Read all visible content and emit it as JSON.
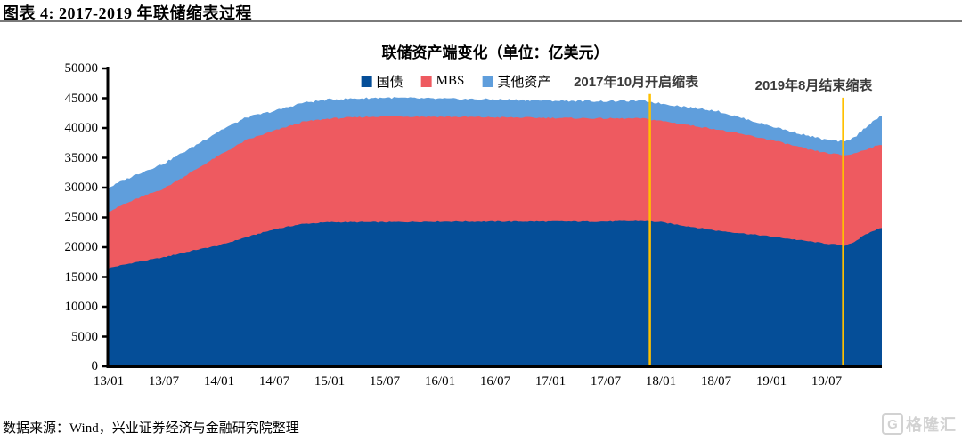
{
  "header": {
    "title": "图表 4: 2017-2019 年联储缩表过程"
  },
  "footer": {
    "source": "数据来源：Wind，兴业证券经济与金融研究院整理",
    "watermark_letter": "G",
    "watermark_text": "格隆汇"
  },
  "chart_data": {
    "type": "area",
    "stacked": true,
    "title": "联储资产端变化（单位：亿美元）",
    "unit": "亿美元",
    "legend": [
      {
        "label": "国债",
        "color": "#054E98"
      },
      {
        "label": "MBS",
        "color": "#EE5A60"
      },
      {
        "label": "其他资产",
        "color": "#5F9EDC"
      }
    ],
    "colors": {
      "treasury": "#054E98",
      "mbs": "#EE5A60",
      "other": "#5F9EDC",
      "event_line": "#FFC000",
      "axis": "#000000"
    },
    "ylim": [
      0,
      50000
    ],
    "y_ticks": [
      0,
      5000,
      10000,
      15000,
      20000,
      25000,
      30000,
      35000,
      40000,
      45000,
      50000
    ],
    "x_domain_months": [
      0,
      84
    ],
    "x_tick_months": [
      0,
      6,
      12,
      18,
      24,
      30,
      36,
      42,
      48,
      54,
      60,
      66,
      72,
      78
    ],
    "x_tick_labels": [
      "13/01",
      "13/07",
      "14/01",
      "14/07",
      "15/01",
      "15/07",
      "16/01",
      "16/07",
      "17/01",
      "17/07",
      "18/01",
      "18/07",
      "19/01",
      "19/07"
    ],
    "legend_position": "top",
    "grid": false,
    "samples": {
      "months": [
        0,
        3,
        6,
        9,
        12,
        15,
        18,
        21,
        24,
        30,
        36,
        42,
        48,
        54,
        58,
        60,
        66,
        72,
        76,
        78,
        80,
        81,
        82,
        83,
        84
      ],
      "treasury": [
        16500,
        17500,
        18300,
        19400,
        20300,
        21700,
        23000,
        23900,
        24200,
        24200,
        24300,
        24300,
        24300,
        24300,
        24400,
        24200,
        22800,
        21800,
        21000,
        20600,
        20300,
        20900,
        21900,
        22700,
        23300
      ],
      "mbs": [
        9500,
        10600,
        11550,
        13200,
        15100,
        16300,
        16550,
        17100,
        17400,
        17800,
        17600,
        17500,
        17400,
        17300,
        17200,
        17000,
        17000,
        16200,
        15400,
        15200,
        15100,
        14800,
        14400,
        14100,
        13900
      ],
      "other": [
        4000,
        4100,
        4200,
        4100,
        4100,
        3800,
        3300,
        3200,
        3200,
        3100,
        3000,
        3000,
        2900,
        2900,
        3000,
        2900,
        3100,
        2300,
        2300,
        2200,
        2300,
        2700,
        3500,
        4300,
        4800
      ]
    },
    "annotations": [
      {
        "text": "2017年10月开启缩表",
        "line_month": 58.8,
        "label_month": 57.3,
        "line_top_value": 45700
      },
      {
        "text": "2019年8月结束缩表",
        "line_month": 79.8,
        "label_month": 76.6,
        "line_top_value": 45100
      }
    ]
  }
}
